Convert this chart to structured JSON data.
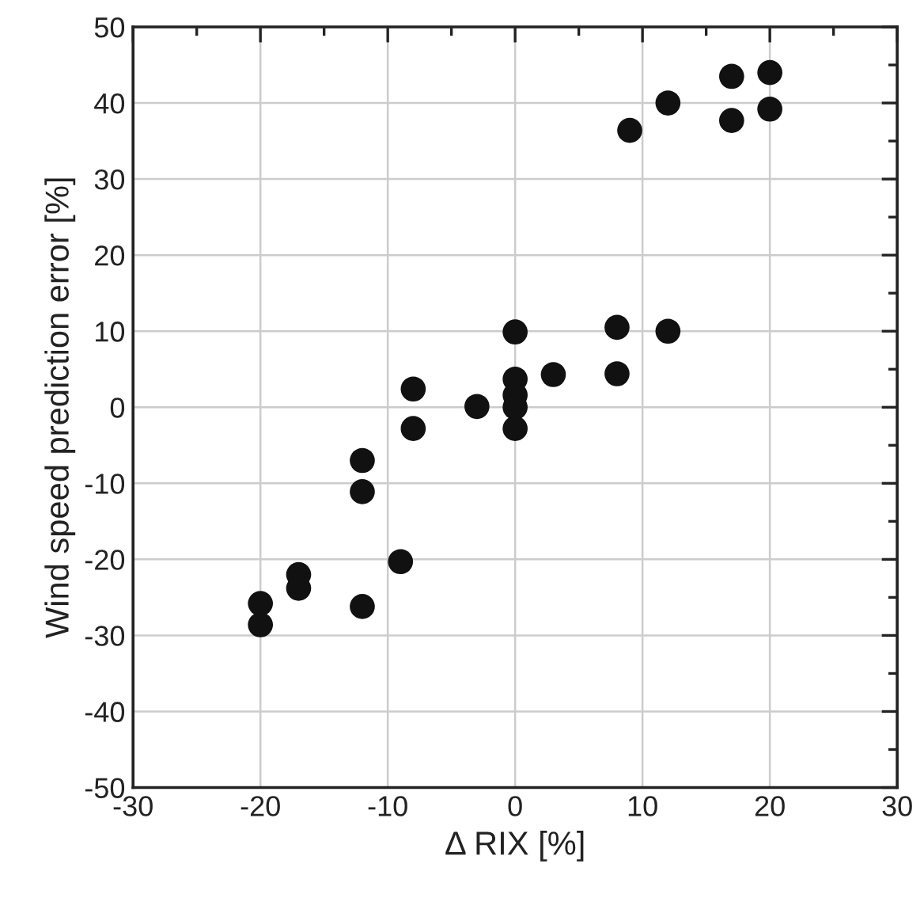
{
  "chart_data": {
    "type": "scatter",
    "xlabel": "Δ RIX [%]",
    "ylabel": "Wind speed prediction error [%]",
    "x": [
      -20,
      -20,
      -17,
      -17,
      -12,
      -12,
      -12,
      -9,
      -8,
      -8,
      -3,
      0,
      0,
      0,
      0,
      0,
      3,
      8,
      8,
      9,
      12,
      12,
      17,
      17,
      20,
      20
    ],
    "series": [
      {
        "color": "#111111",
        "values": [
          -25.8,
          -28.6,
          -22.0,
          -23.8,
          -7.0,
          -11.1,
          -26.2,
          -20.3,
          2.4,
          -2.8,
          0.1,
          9.9,
          3.7,
          1.6,
          0.0,
          -2.8,
          4.3,
          10.5,
          4.4,
          36.4,
          40.0,
          10.0,
          43.5,
          37.7,
          44.0,
          39.2
        ]
      }
    ],
    "xlim": [
      -30,
      30
    ],
    "ylim": [
      -50,
      50
    ],
    "xticks": [
      -30,
      -20,
      -10,
      0,
      10,
      20,
      30
    ],
    "yticks": [
      -50,
      -40,
      -30,
      -20,
      -10,
      0,
      10,
      20,
      30,
      40,
      50
    ],
    "grid": true,
    "marker": "circle",
    "legend": false
  }
}
